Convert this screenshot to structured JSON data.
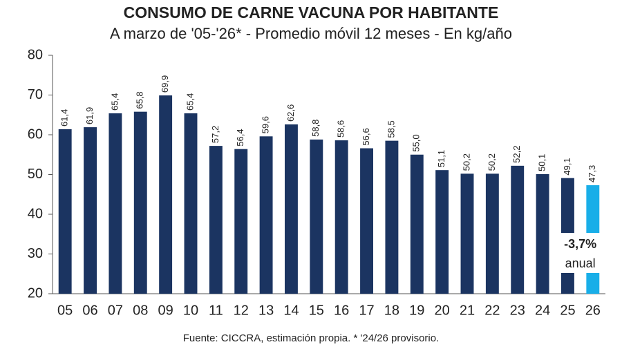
{
  "chart_data": {
    "type": "bar",
    "title": "CONSUMO DE CARNE VACUNA POR HABITANTE",
    "subtitle": "A marzo de '05-'26* - Promedio móvil 12 meses -  En kg/año",
    "categories": [
      "05",
      "06",
      "07",
      "08",
      "09",
      "10",
      "11",
      "12",
      "13",
      "14",
      "15",
      "16",
      "17",
      "18",
      "19",
      "20",
      "21",
      "22",
      "23",
      "24",
      "25",
      "26"
    ],
    "values": [
      61.4,
      61.9,
      65.4,
      65.8,
      69.9,
      65.4,
      57.2,
      56.4,
      59.6,
      62.6,
      58.8,
      58.6,
      56.6,
      58.5,
      55.0,
      51.1,
      50.2,
      50.2,
      52.2,
      50.1,
      49.1,
      47.3
    ],
    "value_labels": [
      "61,4",
      "61,9",
      "65,4",
      "65,8",
      "69,9",
      "65,4",
      "57,2",
      "56,4",
      "59,6",
      "62,6",
      "58,8",
      "58,6",
      "56,6",
      "58,5",
      "55,0",
      "51,1",
      "50,2",
      "50,2",
      "52,2",
      "50,1",
      "49,1",
      "47,3"
    ],
    "colors": [
      "#1b3461",
      "#1b3461",
      "#1b3461",
      "#1b3461",
      "#1b3461",
      "#1b3461",
      "#1b3461",
      "#1b3461",
      "#1b3461",
      "#1b3461",
      "#1b3461",
      "#1b3461",
      "#1b3461",
      "#1b3461",
      "#1b3461",
      "#1b3461",
      "#1b3461",
      "#1b3461",
      "#1b3461",
      "#1b3461",
      "#1b3461",
      "#18aee8"
    ],
    "ylim": [
      20,
      80
    ],
    "yticks": [
      20,
      30,
      40,
      50,
      60,
      70,
      80
    ],
    "grid": false,
    "annotations": [
      "-3,7%",
      "anual"
    ],
    "footnote": "Fuente: CICCRA, estimación propia. * '24/26 provisorio."
  }
}
